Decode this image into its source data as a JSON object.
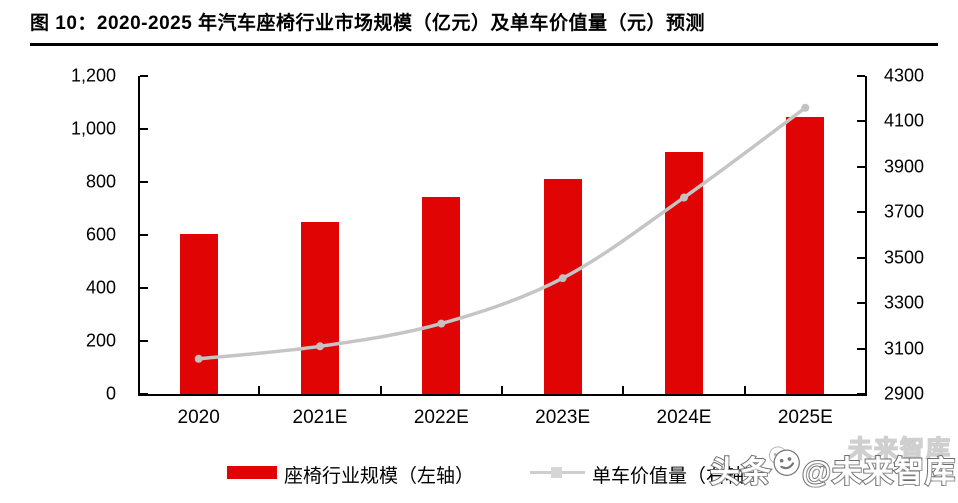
{
  "title": {
    "label": "图  10：2020-2025 年汽车座椅行业市场规模（亿元）及单车价值量（元）预测"
  },
  "chart_data": {
    "type": "bar",
    "title": "2020-2025 年汽车座椅行业市场规模（亿元）及单车价值量（元）预测",
    "categories": [
      "2020",
      "2021E",
      "2022E",
      "2023E",
      "2024E",
      "2025E"
    ],
    "series": [
      {
        "name": "座椅行业规模（左轴）",
        "type": "bar",
        "axis": "left",
        "color": "#e00404",
        "values": [
          605,
          650,
          745,
          810,
          915,
          1045
        ]
      },
      {
        "name": "单车价值量（右轴）",
        "type": "line",
        "axis": "right",
        "color": "#c5c5c5",
        "values": [
          3055,
          3110,
          3210,
          3410,
          3765,
          4160
        ]
      }
    ],
    "left_axis": {
      "min": 0,
      "max": 1200,
      "step": 200,
      "tick_labels": [
        "0",
        "200",
        "400",
        "600",
        "800",
        "1,000",
        "1,200"
      ]
    },
    "right_axis": {
      "min": 2900,
      "max": 4300,
      "step": 200,
      "tick_labels": [
        "2900",
        "3100",
        "3300",
        "3500",
        "3700",
        "3900",
        "4100",
        "4300"
      ]
    },
    "grid": false,
    "legend_position": "bottom"
  },
  "legend": {
    "bar_label": "座椅行业规模（左轴）",
    "line_label": "单车价值量（右轴）"
  },
  "watermark": {
    "ghost": "未来智库",
    "main_prefix": "头条",
    "main_suffix": "@未来智库"
  },
  "colors": {
    "bar": "#e00404",
    "line": "#c5c5c5",
    "marker": "#c2c2c2",
    "axis": "#000000"
  }
}
